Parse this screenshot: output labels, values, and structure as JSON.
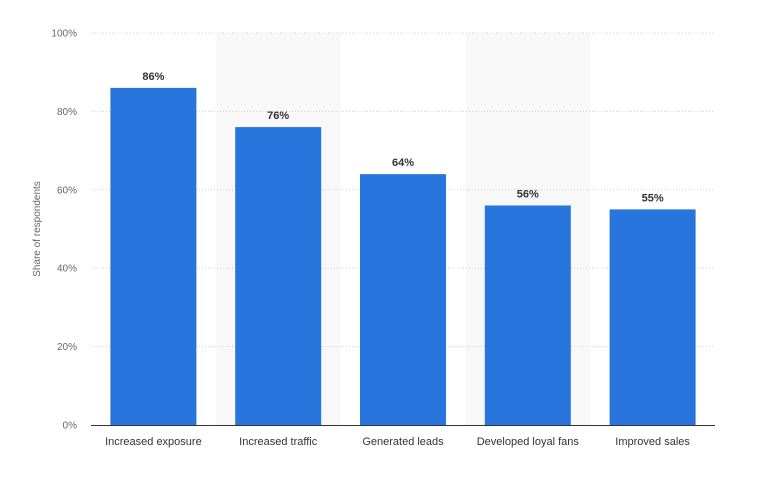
{
  "chart_data": {
    "type": "bar",
    "title": "",
    "xlabel": "",
    "ylabel": "Share of respondents",
    "ylim": [
      0,
      100
    ],
    "y_ticks": [
      0,
      20,
      40,
      60,
      80,
      100
    ],
    "y_tick_labels": [
      "0%",
      "20%",
      "40%",
      "60%",
      "80%",
      "100%"
    ],
    "categories": [
      "Increased exposure",
      "Increased traffic",
      "Generated leads",
      "Developed loyal fans",
      "Improved sales"
    ],
    "values": [
      86,
      76,
      64,
      56,
      55
    ],
    "value_labels": [
      "86%",
      "76%",
      "64%",
      "56%",
      "55%"
    ],
    "grid": true,
    "alternating_band_shading": true,
    "colors": {
      "bar": "#2876dd",
      "band": "#f8f8f8",
      "grid": "#d0d0d0",
      "axis": "#333333"
    }
  }
}
